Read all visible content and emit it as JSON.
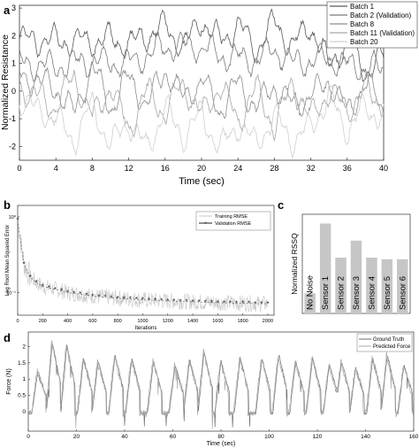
{
  "panels": {
    "a": "a",
    "b": "b",
    "c": "c",
    "d": "d"
  },
  "chart_data": [
    {
      "id": "a",
      "type": "line",
      "xlabel": "Time (sec)",
      "ylabel": "Normalized Resistance",
      "xlim": [
        0,
        40
      ],
      "ylim": [
        -2.5,
        3.1
      ],
      "xticks": [
        0,
        4,
        8,
        12,
        16,
        20,
        24,
        28,
        32,
        36,
        40
      ],
      "yticks": [
        -2,
        -1,
        0,
        1,
        2,
        3
      ],
      "grid": false,
      "legend": "top-right",
      "series": [
        {
          "name": "Batch 1",
          "color": "#595959",
          "base": 2.0,
          "amp": 0.9,
          "phase": 0.0,
          "points": [
            [
              0,
              1.9
            ],
            [
              4,
              1.8
            ],
            [
              8,
              1.8
            ],
            [
              10,
              1.9
            ],
            [
              12,
              1.7
            ],
            [
              14,
              2.0
            ],
            [
              16,
              2.4
            ],
            [
              18,
              1.6
            ],
            [
              20,
              2.6
            ],
            [
              22,
              1.8
            ],
            [
              24,
              2.4
            ],
            [
              26,
              1.5
            ],
            [
              28,
              2.5
            ],
            [
              30,
              1.6
            ],
            [
              32,
              2.4
            ],
            [
              34,
              0.9
            ],
            [
              36,
              1.8
            ],
            [
              38,
              0.7
            ],
            [
              40,
              1.2
            ]
          ]
        },
        {
          "name": "Batch 2 (Validation)",
          "color": "#7a7a7a",
          "base": 1.5,
          "amp": 1.2,
          "phase": 1.3,
          "points": [
            [
              0,
              1.0
            ],
            [
              4,
              0.9
            ],
            [
              8,
              1.1
            ],
            [
              12,
              1.0
            ],
            [
              16,
              1.6
            ],
            [
              20,
              1.6
            ],
            [
              22,
              1.3
            ],
            [
              26,
              1.1
            ],
            [
              28,
              1.5
            ],
            [
              30,
              1.0
            ],
            [
              34,
              1.2
            ],
            [
              36,
              0.9
            ],
            [
              40,
              0.8
            ]
          ]
        },
        {
          "name": "Batch 8",
          "color": "#8c8c8c",
          "base": 0.8,
          "amp": 1.6,
          "phase": 2.1,
          "points": [
            [
              0,
              0.6
            ],
            [
              4,
              0.1
            ],
            [
              6,
              -0.8
            ],
            [
              8,
              0.9
            ],
            [
              10,
              -0.6
            ],
            [
              12,
              0.5
            ],
            [
              14,
              -0.5
            ],
            [
              16,
              0.8
            ],
            [
              18,
              -0.3
            ],
            [
              20,
              0.4
            ],
            [
              22,
              -0.7
            ],
            [
              24,
              0.3
            ],
            [
              26,
              -0.6
            ],
            [
              28,
              0.2
            ],
            [
              30,
              -0.5
            ],
            [
              32,
              -0.2
            ],
            [
              34,
              0.4
            ],
            [
              36,
              -0.8
            ],
            [
              38,
              0.3
            ],
            [
              40,
              -0.6
            ]
          ]
        },
        {
          "name": "Batch 11 (Validation)",
          "color": "#a6a6a6",
          "base": 0.2,
          "amp": 1.7,
          "phase": 3.4,
          "points": [
            [
              0,
              0.2
            ],
            [
              4,
              -0.6
            ],
            [
              6,
              0.6
            ],
            [
              8,
              -1.0
            ],
            [
              10,
              0.2
            ],
            [
              12,
              -1.4
            ],
            [
              14,
              0.0
            ],
            [
              16,
              -0.8
            ],
            [
              18,
              0.3
            ],
            [
              20,
              -0.9
            ],
            [
              22,
              0.2
            ],
            [
              24,
              -1.1
            ],
            [
              26,
              0.1
            ],
            [
              28,
              -1.3
            ],
            [
              30,
              0.3
            ],
            [
              32,
              -1.0
            ],
            [
              34,
              0.0
            ],
            [
              36,
              -0.7
            ],
            [
              38,
              0.1
            ],
            [
              40,
              -0.5
            ]
          ]
        },
        {
          "name": "Batch 20",
          "color": "#cfcfcf",
          "base": -0.8,
          "amp": 1.3,
          "phase": 4.6,
          "points": [
            [
              0,
              -0.3
            ],
            [
              4,
              -1.0
            ],
            [
              6,
              -1.8
            ],
            [
              8,
              -0.5
            ],
            [
              10,
              -2.0
            ],
            [
              12,
              -1.1
            ],
            [
              14,
              -2.1
            ],
            [
              16,
              -0.6
            ],
            [
              18,
              -1.7
            ],
            [
              20,
              -0.8
            ],
            [
              22,
              -2.1
            ],
            [
              24,
              -1.2
            ],
            [
              26,
              -1.9
            ],
            [
              28,
              -0.9
            ],
            [
              30,
              -1.8
            ],
            [
              32,
              -1.3
            ],
            [
              34,
              -0.2
            ],
            [
              36,
              -1.4
            ],
            [
              38,
              -0.6
            ],
            [
              40,
              -1.0
            ]
          ]
        }
      ]
    },
    {
      "id": "b",
      "type": "line",
      "xlabel": "Iterations",
      "ylabel": "Log Root Mean Squared Error",
      "xlim": [
        0,
        2050
      ],
      "ylim_log10": [
        -1.3,
        0.15
      ],
      "xticks": [
        0,
        200,
        400,
        600,
        800,
        1000,
        1200,
        1400,
        1600,
        1800,
        2000
      ],
      "ytick_labels": [
        "10⁰",
        "10⁻¹"
      ],
      "ytick_values_log10": [
        0,
        -1
      ],
      "legend": "top-right",
      "series": [
        {
          "name": "Training RMSE",
          "color": "#c8c8c8"
        },
        {
          "name": "Validation RMSE",
          "color": "#222222",
          "marker": "*",
          "x": [
            0,
            50,
            100,
            150,
            200,
            250,
            300,
            350,
            400,
            450,
            500,
            550,
            600,
            650,
            700,
            750,
            800,
            850,
            900,
            950,
            1000,
            1050,
            1100,
            1150,
            1200,
            1250,
            1300,
            1350,
            1400,
            1450,
            1500,
            1550,
            1600,
            1650,
            1700,
            1750,
            1800,
            1850,
            1900,
            1950,
            2000
          ],
          "y": [
            0.9,
            0.24,
            0.16,
            0.135,
            0.12,
            0.115,
            0.11,
            0.105,
            0.1,
            0.097,
            0.095,
            0.092,
            0.09,
            0.088,
            0.087,
            0.085,
            0.084,
            0.083,
            0.082,
            0.081,
            0.08,
            0.079,
            0.079,
            0.078,
            0.077,
            0.077,
            0.076,
            0.076,
            0.075,
            0.075,
            0.074,
            0.074,
            0.073,
            0.073,
            0.073,
            0.072,
            0.072,
            0.072,
            0.071,
            0.071,
            0.071
          ]
        }
      ]
    },
    {
      "id": "c",
      "type": "bar",
      "ylabel": "Normalized RSSQ",
      "categories": [
        "No Noise",
        "Sensor 1",
        "Sensor 2",
        "Sensor 3",
        "Sensor 4",
        "Sensor 5",
        "Sensor 6"
      ],
      "values": [
        6.5,
        29,
        18,
        23.5,
        18,
        17.5,
        17.5
      ],
      "ylim": [
        0,
        32
      ],
      "grid": false
    },
    {
      "id": "d",
      "type": "line",
      "xlabel": "Time (sec)",
      "ylabel": "Force (N)",
      "xlim": [
        0,
        160
      ],
      "ylim": [
        -0.6,
        2.45
      ],
      "xticks": [
        0,
        20,
        40,
        60,
        80,
        100,
        120,
        140,
        160
      ],
      "yticks": [
        0,
        0.5,
        1,
        1.5,
        2
      ],
      "legend": "top-right",
      "series": [
        {
          "name": "Ground Truth",
          "color": "#6e6e6e"
        },
        {
          "name": "Predicted Force",
          "color": "#a9a9a9"
        }
      ],
      "peaks_x": [
        4,
        10,
        16,
        23,
        29,
        36,
        43,
        52,
        61,
        67,
        73,
        80,
        88,
        97,
        104,
        111,
        118,
        125,
        130,
        136,
        143,
        149,
        156
      ],
      "peaks_y": [
        1.3,
        2.2,
        2.1,
        1.7,
        1.6,
        1.8,
        1.7,
        1.6,
        1.5,
        1.65,
        1.9,
        1.6,
        1.7,
        1.7,
        1.8,
        1.6,
        1.7,
        1.5,
        1.6,
        1.4,
        1.7,
        1.8,
        1.5
      ]
    }
  ]
}
